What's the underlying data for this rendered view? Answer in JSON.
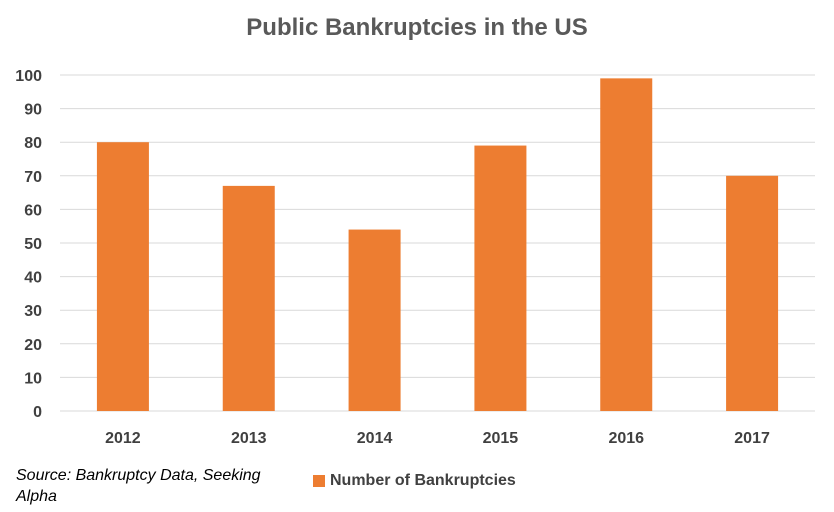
{
  "chart_data": {
    "type": "bar",
    "title": "Public Bankruptcies in the US",
    "categories": [
      "2012",
      "2013",
      "2014",
      "2015",
      "2016",
      "2017"
    ],
    "series": [
      {
        "name": "Number of Bankruptcies",
        "values": [
          80,
          67,
          54,
          79,
          99,
          70
        ]
      }
    ],
    "xlabel": "",
    "ylabel": "",
    "ylim": [
      0,
      100
    ],
    "yticks": [
      0,
      10,
      20,
      30,
      40,
      50,
      60,
      70,
      80,
      90,
      100
    ],
    "grid": true,
    "legend_position": "bottom",
    "bar_color": "#ed7d31",
    "source": "Source: Bankruptcy Data, Seeking Alpha"
  }
}
